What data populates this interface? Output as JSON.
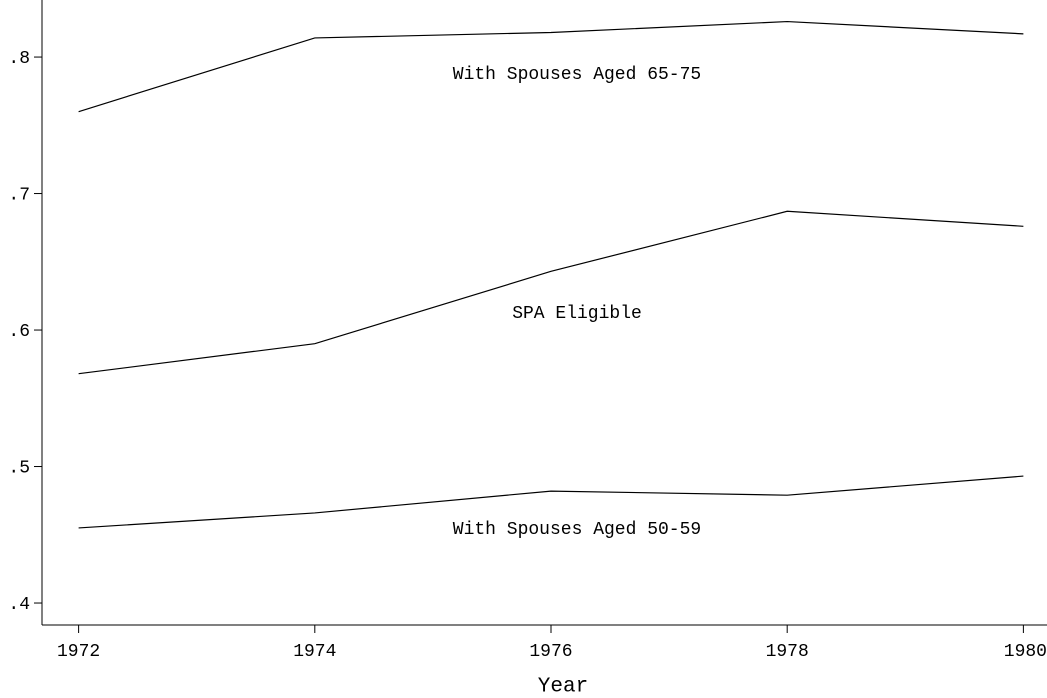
{
  "chart_data": {
    "type": "line",
    "x_label": "Year",
    "x": [
      1972,
      1974,
      1976,
      1978,
      1980
    ],
    "xlim": [
      1971.69,
      1980.2
    ],
    "xticks": [
      1972,
      1974,
      1976,
      1978,
      1980
    ],
    "ylim": [
      0.3839,
      0.8418
    ],
    "yticks": [
      {
        "value": 0.4,
        "label": ".4"
      },
      {
        "value": 0.5,
        "label": ".5"
      },
      {
        "value": 0.6,
        "label": ".6"
      },
      {
        "value": 0.7,
        "label": ".7"
      },
      {
        "value": 0.8,
        "label": ".8"
      }
    ],
    "grid": false,
    "series": [
      {
        "name": "With Spouses Aged 65-75",
        "color": "#000000",
        "values": [
          0.76,
          0.814,
          0.818,
          0.826,
          0.817
        ]
      },
      {
        "name": "SPA Eligible",
        "color": "#000000",
        "values": [
          0.568,
          0.59,
          0.643,
          0.687,
          0.676
        ]
      },
      {
        "name": "With Spouses Aged 50-59",
        "color": "#000000",
        "values": [
          0.455,
          0.466,
          0.482,
          0.479,
          0.493
        ]
      }
    ]
  }
}
